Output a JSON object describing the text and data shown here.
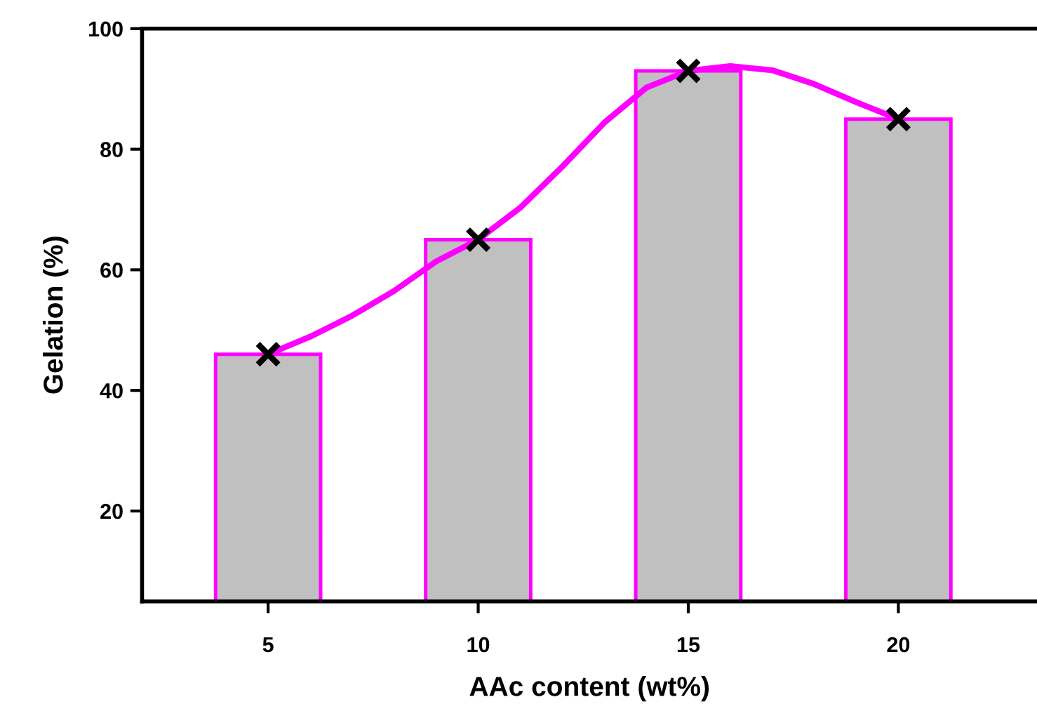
{
  "chart_data": {
    "type": "bar",
    "xlabel": "AAc content (wt%)",
    "ylabel": "Gelation (%)",
    "x": [
      5,
      10,
      15,
      20
    ],
    "series": [
      {
        "color": "#c0c0c0",
        "values": [
          46,
          65,
          93,
          85
        ]
      },
      {
        "type": "line",
        "color": "#ff00ff",
        "x": [
          5,
          6,
          7,
          8,
          9,
          10,
          11,
          12,
          13,
          14,
          15,
          16,
          17,
          18,
          19,
          20
        ],
        "values": [
          46,
          48.9,
          52.4,
          56.5,
          61.4,
          65,
          70.3,
          77.1,
          84.4,
          90.2,
          93,
          93.8,
          93.1,
          90.8,
          87.8,
          85
        ],
        "line_style": "solid"
      },
      {
        "type": "scatter",
        "color": "#000000",
        "x": [
          5,
          10,
          15,
          20
        ],
        "values": [
          46,
          65,
          93,
          85
        ],
        "marker": "cross"
      }
    ],
    "xlim": [
      2,
      23.3
    ],
    "xticks": [
      5,
      10,
      15,
      20
    ],
    "ylim": [
      5,
      100
    ],
    "yticks": [
      20,
      40,
      60,
      80,
      100
    ],
    "grid": false,
    "legend": false
  }
}
